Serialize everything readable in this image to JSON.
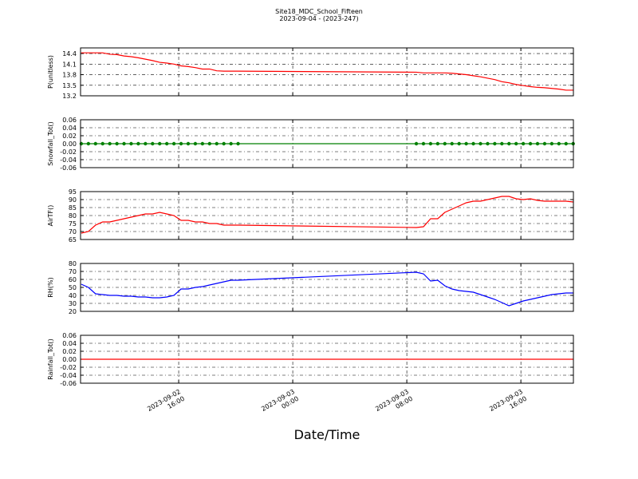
{
  "chart_data": {
    "type": "line",
    "title": "Site18_MDC_School_Fifteen",
    "subtitle": "2023-09-04 - (2023-247)",
    "xlabel": "Date/Time",
    "xlim": [
      "2023-09-02 09:07",
      "2023-09-03 19:41"
    ],
    "xticks": [
      {
        "value": "2023-09-02 16:00",
        "label": "2023-09-02\n16:00"
      },
      {
        "value": "2023-09-03 00:00",
        "label": "2023-09-03\n00:00"
      },
      {
        "value": "2023-09-03 08:00",
        "label": "2023-09-03\n08:00"
      },
      {
        "value": "2023-09-03 16:00",
        "label": "2023-09-03\n16:00"
      }
    ],
    "grid": true,
    "x": [
      "2023-09-02 09:10",
      "2023-09-02 09:40",
      "2023-09-02 10:10",
      "2023-09-02 10:40",
      "2023-09-02 11:10",
      "2023-09-02 11:40",
      "2023-09-02 12:10",
      "2023-09-02 12:40",
      "2023-09-02 13:10",
      "2023-09-02 13:40",
      "2023-09-02 14:10",
      "2023-09-02 14:40",
      "2023-09-02 15:10",
      "2023-09-02 15:40",
      "2023-09-02 16:10",
      "2023-09-02 16:40",
      "2023-09-02 17:10",
      "2023-09-02 17:40",
      "2023-09-02 18:10",
      "2023-09-02 18:40",
      "2023-09-02 19:10",
      "2023-09-02 19:40",
      "2023-09-02 20:10",
      "2023-09-03 08:40",
      "2023-09-03 09:10",
      "2023-09-03 09:40",
      "2023-09-03 10:10",
      "2023-09-03 10:40",
      "2023-09-03 11:10",
      "2023-09-03 11:40",
      "2023-09-03 12:10",
      "2023-09-03 12:40",
      "2023-09-03 13:10",
      "2023-09-03 13:40",
      "2023-09-03 14:10",
      "2023-09-03 14:40",
      "2023-09-03 15:10",
      "2023-09-03 15:40",
      "2023-09-03 16:10",
      "2023-09-03 16:40",
      "2023-09-03 17:10",
      "2023-09-03 17:40",
      "2023-09-03 18:10",
      "2023-09-03 18:40",
      "2023-09-03 19:10",
      "2023-09-03 19:40"
    ],
    "panels": [
      {
        "ylabel": "P(unitless)",
        "ylim": [
          13.2,
          14.56
        ],
        "yticks": [
          13.2,
          13.5,
          13.8,
          14.1,
          14.4
        ],
        "series": [
          {
            "name": "P",
            "color": "#ff0000",
            "values": [
              14.42,
              14.42,
              14.42,
              14.42,
              14.38,
              14.37,
              14.33,
              14.31,
              14.28,
              14.24,
              14.2,
              14.15,
              14.13,
              14.1,
              14.05,
              14.03,
              14.0,
              13.96,
              13.96,
              13.91,
              13.9,
              13.9,
              13.9,
              13.87,
              13.85,
              13.85,
              13.85,
              13.85,
              13.84,
              13.82,
              13.8,
              13.77,
              13.74,
              13.7,
              13.66,
              13.6,
              13.57,
              13.52,
              13.49,
              13.46,
              13.44,
              13.43,
              13.41,
              13.39,
              13.36,
              13.36
            ]
          }
        ]
      },
      {
        "ylabel": "Snowfall_Tot()",
        "ylim": [
          -0.06,
          0.06
        ],
        "yticks": [
          -0.06,
          -0.04,
          -0.02,
          {
            "value": 0,
            "label": "0.00"
          },
          0.02,
          0.04,
          0.06
        ],
        "series": [
          {
            "name": "Snowfall_Tot",
            "color": "#008000",
            "marker": "o",
            "values": [
              0,
              0,
              0,
              0,
              0,
              0,
              0,
              0,
              0,
              0,
              0,
              0,
              0,
              0,
              0,
              0,
              0,
              0,
              0,
              0,
              0,
              0,
              0,
              0,
              0,
              0,
              0,
              0,
              0,
              0,
              0,
              0,
              0,
              0,
              0,
              0,
              0,
              0,
              0,
              0,
              0,
              0,
              0,
              0,
              0,
              0
            ]
          }
        ]
      },
      {
        "ylabel": "AirTF()",
        "ylim": [
          65,
          95
        ],
        "yticks": [
          65,
          70,
          75,
          80,
          85,
          90,
          95
        ],
        "series": [
          {
            "name": "AirTF",
            "color": "#ff0000",
            "values": [
              69,
              70,
              74,
              76,
              76,
              77,
              78,
              79,
              80,
              81,
              81,
              82,
              81,
              80,
              77,
              77,
              76,
              76,
              75,
              75,
              74,
              74,
              74,
              72.5,
              73,
              78,
              78,
              82,
              84,
              86,
              88,
              89,
              89,
              90,
              91,
              92,
              92,
              90.5,
              90,
              90.5,
              89.5,
              89,
              89,
              89,
              89,
              88.5
            ]
          }
        ]
      },
      {
        "ylabel": "RH(%)",
        "ylim": [
          20,
          80
        ],
        "yticks": [
          20,
          30,
          40,
          50,
          60,
          70,
          80
        ],
        "series": [
          {
            "name": "RH",
            "color": "#0000ff",
            "values": [
              54,
              50,
              42,
              41,
              40,
              40,
              39,
              39,
              38,
              38,
              37,
              37,
              38,
              40,
              48,
              48,
              50,
              51,
              53,
              55,
              57,
              59,
              59,
              69,
              67,
              58,
              59,
              52,
              48,
              46,
              45,
              44,
              41,
              38,
              35,
              31,
              27,
              30,
              33,
              35,
              37,
              39,
              41,
              42,
              43,
              43
            ]
          }
        ]
      },
      {
        "ylabel": "Rainfall_Tot()",
        "ylim": [
          -0.06,
          0.06
        ],
        "yticks": [
          -0.06,
          -0.04,
          -0.02,
          {
            "value": 0,
            "label": "0.00"
          },
          0.02,
          0.04,
          0.06
        ],
        "series": [
          {
            "name": "Rainfall_Tot",
            "color": "#ff0000",
            "values": [
              0,
              0,
              0,
              0,
              0,
              0,
              0,
              0,
              0,
              0,
              0,
              0,
              0,
              0,
              0,
              0,
              0,
              0,
              0,
              0,
              0,
              0,
              0,
              0,
              0,
              0,
              0,
              0,
              0,
              0,
              0,
              0,
              0,
              0,
              0,
              0,
              0,
              0,
              0,
              0,
              0,
              0,
              0,
              0,
              0,
              0
            ]
          }
        ]
      }
    ]
  }
}
